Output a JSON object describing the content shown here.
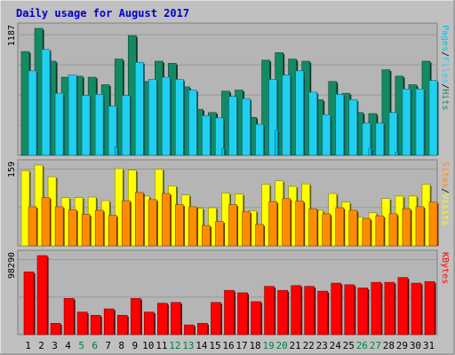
{
  "title": "Daily usage for August 2017",
  "colors": {
    "background": "#c0c0c0",
    "panel": "#b5b5b5",
    "title": "#0000cc",
    "hits": "#138a64",
    "files": "#20d0f0",
    "pages": "#00c8e8",
    "visits": "#ffff00",
    "sites": "#ff8c00",
    "kbytes": "#ff0000",
    "weekend": "#008040",
    "weekday": "#000000"
  },
  "chart_data": [
    {
      "type": "bar",
      "panel": "hits-files-pages",
      "max_label": "1187",
      "legend": [
        {
          "name": "Pages",
          "color": "#00c8e8"
        },
        {
          "name": "/",
          "color": "#000000"
        },
        {
          "name": "Files",
          "color": "#20d0f0"
        },
        {
          "name": "/",
          "color": "#000000"
        },
        {
          "name": "Hits",
          "color": "#138a64"
        }
      ],
      "categories": [
        "1",
        "2",
        "3",
        "4",
        "5",
        "6",
        "7",
        "8",
        "9",
        "10",
        "11",
        "12",
        "13",
        "14",
        "15",
        "16",
        "17",
        "18",
        "19",
        "20",
        "21",
        "22",
        "23",
        "24",
        "25",
        "26",
        "27",
        "28",
        "29",
        "30",
        "31"
      ],
      "series": [
        {
          "name": "Hits",
          "values": [
            970,
            1187,
            880,
            730,
            740,
            730,
            660,
            900,
            1120,
            690,
            880,
            860,
            640,
            430,
            400,
            600,
            610,
            355,
            890,
            960,
            900,
            880,
            520,
            690,
            580,
            400,
            390,
            800,
            740,
            660,
            880
          ]
        },
        {
          "name": "Files",
          "values": [
            790,
            990,
            580,
            750,
            560,
            570,
            460,
            560,
            870,
            710,
            730,
            710,
            610,
            370,
            350,
            550,
            530,
            290,
            710,
            750,
            790,
            590,
            380,
            570,
            520,
            300,
            300,
            400,
            620,
            620,
            700
          ]
        },
        {
          "name": "Pages",
          "values": [
            0,
            0,
            0,
            0,
            0,
            0,
            80,
            0,
            0,
            0,
            0,
            0,
            0,
            0,
            65,
            0,
            0,
            0,
            235,
            0,
            0,
            0,
            0,
            0,
            0,
            65,
            0,
            30,
            0,
            0,
            0
          ]
        }
      ],
      "ylim": [
        0,
        1187
      ]
    },
    {
      "type": "bar",
      "panel": "visits-sites",
      "max_label": "159",
      "legend": [
        {
          "name": "Sites",
          "color": "#ff8c00"
        },
        {
          "name": "/",
          "color": "#000000"
        },
        {
          "name": "Visits",
          "color": "#ffff00"
        }
      ],
      "categories": [
        "1",
        "2",
        "3",
        "4",
        "5",
        "6",
        "7",
        "8",
        "9",
        "10",
        "11",
        "12",
        "13",
        "14",
        "15",
        "16",
        "17",
        "18",
        "19",
        "20",
        "21",
        "22",
        "23",
        "24",
        "25",
        "26",
        "27",
        "28",
        "29",
        "30",
        "31"
      ],
      "series": [
        {
          "name": "Visits",
          "values": [
            148,
            159,
            136,
            95,
            95,
            96,
            89,
            152,
            149,
            98,
            151,
            118,
            100,
            74,
            75,
            104,
            102,
            69,
            121,
            128,
            117,
            122,
            70,
            103,
            86,
            57,
            65,
            93,
            98,
            98,
            121
          ]
        },
        {
          "name": "Sites",
          "values": [
            77,
            95,
            77,
            71,
            62,
            70,
            60,
            89,
            105,
            91,
            103,
            81,
            77,
            40,
            48,
            81,
            67,
            42,
            87,
            93,
            88,
            73,
            63,
            75,
            70,
            54,
            59,
            63,
            73,
            77,
            86
          ]
        }
      ],
      "ylim": [
        0,
        159
      ]
    },
    {
      "type": "bar",
      "panel": "kbytes",
      "max_label": "98290",
      "legend": [
        {
          "name": "KBytes",
          "color": "#ff0000"
        }
      ],
      "categories": [
        "1",
        "2",
        "3",
        "4",
        "5",
        "6",
        "7",
        "8",
        "9",
        "10",
        "11",
        "12",
        "13",
        "14",
        "15",
        "16",
        "17",
        "18",
        "19",
        "20",
        "21",
        "22",
        "23",
        "24",
        "25",
        "26",
        "27",
        "28",
        "29",
        "30",
        "31"
      ],
      "series": [
        {
          "name": "KBytes",
          "values": [
            78000,
            98290,
            14000,
            45000,
            28000,
            24000,
            32000,
            24000,
            45000,
            28000,
            39000,
            40000,
            12000,
            14000,
            40000,
            55000,
            52000,
            41000,
            60000,
            55000,
            61000,
            60000,
            54000,
            64000,
            62000,
            58000,
            65000,
            65000,
            71000,
            64000,
            66000
          ]
        }
      ],
      "ylim": [
        0,
        98290
      ]
    }
  ],
  "day_labels": [
    {
      "text": "1",
      "weekend": false
    },
    {
      "text": "2",
      "weekend": false
    },
    {
      "text": "3",
      "weekend": false
    },
    {
      "text": "4",
      "weekend": false
    },
    {
      "text": "5",
      "weekend": true
    },
    {
      "text": "6",
      "weekend": true
    },
    {
      "text": "7",
      "weekend": false
    },
    {
      "text": "8",
      "weekend": false
    },
    {
      "text": "9",
      "weekend": false
    },
    {
      "text": "10",
      "weekend": false
    },
    {
      "text": "11",
      "weekend": false
    },
    {
      "text": "12",
      "weekend": true
    },
    {
      "text": "13",
      "weekend": true
    },
    {
      "text": "14",
      "weekend": false
    },
    {
      "text": "15",
      "weekend": false
    },
    {
      "text": "16",
      "weekend": false
    },
    {
      "text": "17",
      "weekend": false
    },
    {
      "text": "18",
      "weekend": false
    },
    {
      "text": "19",
      "weekend": true
    },
    {
      "text": "20",
      "weekend": true
    },
    {
      "text": "21",
      "weekend": false
    },
    {
      "text": "22",
      "weekend": false
    },
    {
      "text": "23",
      "weekend": false
    },
    {
      "text": "24",
      "weekend": false
    },
    {
      "text": "25",
      "weekend": false
    },
    {
      "text": "26",
      "weekend": true
    },
    {
      "text": "27",
      "weekend": true
    },
    {
      "text": "28",
      "weekend": false
    },
    {
      "text": "29",
      "weekend": false
    },
    {
      "text": "30",
      "weekend": false
    },
    {
      "text": "31",
      "weekend": false
    }
  ]
}
